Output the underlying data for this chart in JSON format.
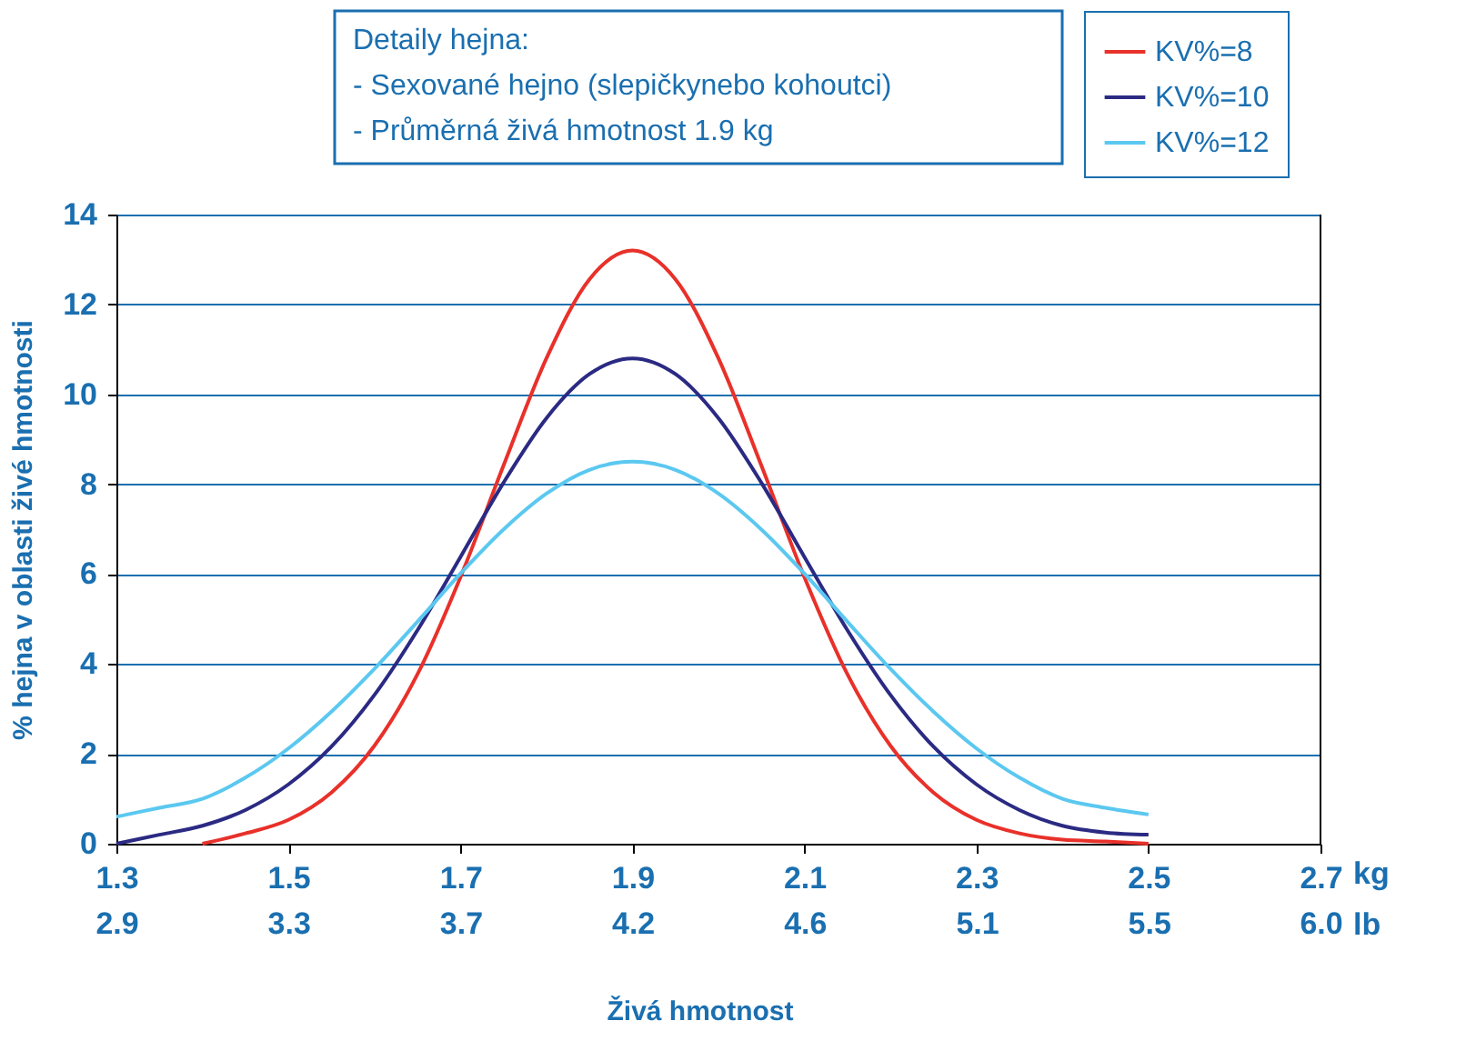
{
  "chart_data": {
    "type": "line",
    "xlabel": "Živá hmotnost",
    "ylabel": "% hejna v oblasti živé hmotnosti",
    "annotations": [
      "Detaily hejna:",
      "- Sexované hejno (slepičkynebo kohoutci)",
      "- Průměrná živá hmotnost 1.9 kg",
      "kg",
      "lb"
    ],
    "xlim": [
      1.3,
      2.7
    ],
    "xticks": [
      1.3,
      1.5,
      1.7,
      1.9,
      2.1,
      2.3,
      2.5,
      2.7
    ],
    "x2lim": [
      2.866,
      5.952
    ],
    "x2ticks": [
      {
        "value": 2.866,
        "label": "2.9"
      },
      {
        "value": 3.307,
        "label": "3.3"
      },
      {
        "value": 3.748,
        "label": "3.7"
      },
      {
        "value": 4.189,
        "label": "4.2"
      },
      {
        "value": 4.63,
        "label": "4.6"
      },
      {
        "value": 5.071,
        "label": "5.1"
      },
      {
        "value": 5.512,
        "label": "5.5"
      },
      {
        "value": 5.952,
        "label": "6.0"
      }
    ],
    "ylim": [
      0,
      14
    ],
    "yticks": [
      0,
      2,
      4,
      6,
      8,
      10,
      12,
      14
    ],
    "grid": "y",
    "legend": "top right",
    "marker": "none",
    "line_style": "solid",
    "series": [
      {
        "name": "KV%=8",
        "color": "#e8312a",
        "x": [
          1.4,
          1.45,
          1.5,
          1.55,
          1.6,
          1.65,
          1.7,
          1.75,
          1.8,
          1.85,
          1.9,
          1.95,
          2.0,
          2.05,
          2.1,
          2.15,
          2.2,
          2.25,
          2.3,
          2.35,
          2.4,
          2.45,
          2.5
        ],
        "values": [
          0.0,
          0.23,
          0.53,
          1.14,
          2.18,
          3.77,
          5.93,
          8.41,
          10.8,
          12.56,
          13.2,
          12.56,
          10.8,
          8.41,
          5.93,
          3.77,
          2.18,
          1.14,
          0.53,
          0.23,
          0.09,
          0.05,
          0.0
        ]
      },
      {
        "name": "KV%=10",
        "color": "#2b2a83",
        "x": [
          1.3,
          1.35,
          1.4,
          1.45,
          1.5,
          1.55,
          1.6,
          1.65,
          1.7,
          1.75,
          1.8,
          1.85,
          1.9,
          1.95,
          2.0,
          2.05,
          2.1,
          2.15,
          2.2,
          2.25,
          2.3,
          2.35,
          2.4,
          2.45,
          2.5
        ],
        "values": [
          0.0,
          0.2,
          0.4,
          0.75,
          1.32,
          2.16,
          3.31,
          4.75,
          6.38,
          8.03,
          9.47,
          10.45,
          10.8,
          10.45,
          9.47,
          8.03,
          6.38,
          4.75,
          3.31,
          2.16,
          1.32,
          0.75,
          0.4,
          0.25,
          0.2
        ]
      },
      {
        "name": "KV%=12",
        "color": "#5bc8f0",
        "x": [
          1.3,
          1.35,
          1.4,
          1.45,
          1.5,
          1.55,
          1.6,
          1.65,
          1.7,
          1.75,
          1.8,
          1.85,
          1.9,
          1.95,
          2.0,
          2.05,
          2.1,
          2.15,
          2.2,
          2.25,
          2.3,
          2.35,
          2.4,
          2.45,
          2.5
        ],
        "values": [
          0.6,
          0.8,
          1.0,
          1.47,
          2.12,
          2.94,
          3.89,
          4.94,
          6.01,
          6.99,
          7.79,
          8.32,
          8.5,
          8.32,
          7.79,
          6.99,
          6.01,
          4.94,
          3.89,
          2.94,
          2.12,
          1.47,
          1.0,
          0.8,
          0.65
        ]
      }
    ]
  }
}
